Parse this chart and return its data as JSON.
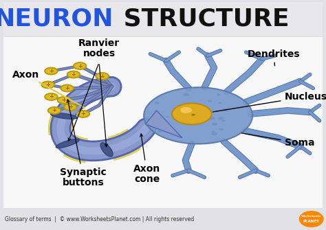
{
  "title_neuron": "NEURON",
  "title_structure": " STRUCTURE",
  "title_neuron_color": "#2255dd",
  "title_structure_color": "#111111",
  "bg_color": "#e2e2e6",
  "panel_bg": "#f8f8f8",
  "footer_text": "Glossary of terms  |  © www.WorksheetsPlanet.com | All rights reserved",
  "footer_color": "#333333",
  "axon_body_color": "#8899cc",
  "axon_body_dark": "#5566aa",
  "soma_color": "#7799cc",
  "soma_dark": "#5577aa",
  "nucleus_color": "#ddaa22",
  "nucleus_dark": "#bb8811",
  "dendrite_color": "#7799cc",
  "dendrite_dark": "#5577aa",
  "myelin_color": "#ddcc44",
  "button_color": "#ddbb22",
  "button_dark": "#bb9911",
  "annotation_color": "#000000",
  "arrow_color": "#000000",
  "ranvier_arrow_color": "#000000",
  "axon_label_arrow": "#ddcc44",
  "label_fontsize": 9,
  "title_fontsize": 26
}
